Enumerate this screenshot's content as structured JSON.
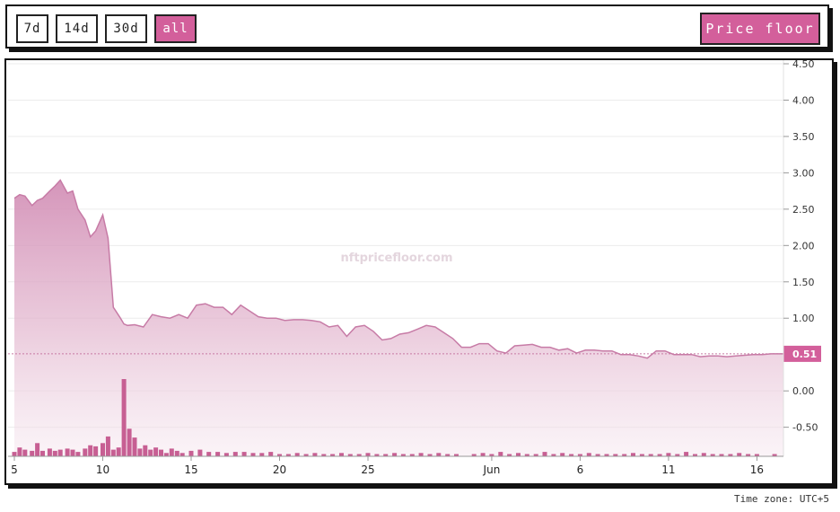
{
  "toolbar": {
    "ranges": [
      {
        "label": "7d",
        "active": false
      },
      {
        "label": "14d",
        "active": false
      },
      {
        "label": "30d",
        "active": false
      },
      {
        "label": "all",
        "active": true
      }
    ],
    "metric_label": "Price floor"
  },
  "timezone": "Time zone: UTC+5",
  "watermark": "nftpricefloor.com",
  "colors": {
    "accent": "#d35f9b",
    "line": "#c77ba6",
    "volume": "#c75f93"
  },
  "chart_data": {
    "type": "area",
    "title": "",
    "xlabel": "",
    "ylabel": "",
    "ylim": [
      -0.9,
      4.5
    ],
    "y_ticks": [
      "4.50",
      "4.00",
      "3.50",
      "3.00",
      "2.50",
      "2.00",
      "1.50",
      "1.00",
      "0.51",
      "0.00",
      "-0.50"
    ],
    "y_tick_values": [
      4.5,
      4.0,
      3.5,
      3.0,
      2.5,
      2.0,
      1.5,
      1.0,
      0.51,
      0.0,
      -0.5
    ],
    "current_value": 0.51,
    "current_label": "0.51",
    "x_ticks": [
      {
        "label": "5",
        "day": 0
      },
      {
        "label": "10",
        "day": 5
      },
      {
        "label": "15",
        "day": 10
      },
      {
        "label": "20",
        "day": 15
      },
      {
        "label": "25",
        "day": 20
      },
      {
        "label": "Jun",
        "day": 27
      },
      {
        "label": "6",
        "day": 32
      },
      {
        "label": "11",
        "day": 37
      },
      {
        "label": "16",
        "day": 42
      }
    ],
    "xlim": [
      0,
      43.5
    ],
    "series": [
      {
        "x": [
          0,
          0.3,
          0.6,
          1,
          1.3,
          1.6,
          2,
          2.3,
          2.6,
          3,
          3.3,
          3.6,
          4,
          4.3,
          4.6,
          5,
          5.3,
          5.6,
          6,
          6.2,
          6.4,
          6.8,
          7.3,
          7.8,
          8.3,
          8.8,
          9.3,
          9.8,
          10.3,
          10.8,
          11.3,
          11.8,
          12.3,
          12.8,
          13.3,
          13.8,
          14.3,
          14.8,
          15.3,
          15.8,
          16.3,
          16.8,
          17.3,
          17.8,
          18.3,
          18.8,
          19.3,
          19.8,
          20.3,
          20.8,
          21.3,
          21.8,
          22.3,
          22.8,
          23.3,
          23.8,
          24.3,
          24.8,
          25.3,
          25.8,
          26.3,
          26.8,
          27.3,
          27.8,
          28.3,
          28.8,
          29.3,
          29.8,
          30.3,
          30.8,
          31.3,
          31.8,
          32.3,
          32.8,
          33.3,
          33.8,
          34.3,
          34.8,
          35.3,
          35.8,
          36.3,
          36.8,
          37.3,
          37.8,
          38.3,
          38.8,
          39.3,
          39.8,
          40.3,
          40.8,
          41.3,
          41.8,
          42.3,
          42.8,
          43.5
        ],
        "values": [
          2.65,
          2.7,
          2.68,
          2.55,
          2.62,
          2.65,
          2.75,
          2.82,
          2.9,
          2.72,
          2.75,
          2.5,
          2.35,
          2.12,
          2.2,
          2.42,
          2.1,
          1.15,
          1.0,
          0.92,
          0.9,
          0.91,
          0.88,
          1.05,
          1.02,
          1.0,
          1.05,
          1.0,
          1.18,
          1.2,
          1.15,
          1.15,
          1.05,
          1.18,
          1.1,
          1.02,
          1.0,
          1.0,
          0.97,
          0.98,
          0.98,
          0.97,
          0.95,
          0.88,
          0.9,
          0.75,
          0.88,
          0.9,
          0.82,
          0.7,
          0.72,
          0.78,
          0.8,
          0.85,
          0.9,
          0.88,
          0.8,
          0.72,
          0.6,
          0.6,
          0.65,
          0.65,
          0.55,
          0.52,
          0.62,
          0.63,
          0.64,
          0.6,
          0.6,
          0.56,
          0.58,
          0.52,
          0.56,
          0.56,
          0.55,
          0.55,
          0.5,
          0.5,
          0.48,
          0.45,
          0.55,
          0.55,
          0.5,
          0.5,
          0.5,
          0.47,
          0.48,
          0.48,
          0.47,
          0.48,
          0.49,
          0.5,
          0.5,
          0.51,
          0.51
        ]
      }
    ],
    "volume": {
      "x": [
        0,
        0.3,
        0.6,
        1,
        1.3,
        1.6,
        2,
        2.3,
        2.6,
        3,
        3.3,
        3.6,
        4,
        4.3,
        4.6,
        5,
        5.3,
        5.6,
        5.9,
        6.2,
        6.5,
        6.8,
        7.1,
        7.4,
        7.7,
        8,
        8.3,
        8.6,
        8.9,
        9.2,
        9.5,
        10,
        10.5,
        11,
        11.5,
        12,
        12.5,
        13,
        13.5,
        14,
        14.5,
        15,
        15.5,
        16,
        16.5,
        17,
        17.5,
        18,
        18.5,
        19,
        19.5,
        20,
        20.5,
        21,
        21.5,
        22,
        22.5,
        23,
        23.5,
        24,
        24.5,
        25,
        26,
        26.5,
        27,
        27.5,
        28,
        28.5,
        29,
        29.5,
        30,
        30.5,
        31,
        31.5,
        32,
        32.5,
        33,
        33.5,
        34,
        34.5,
        35,
        35.5,
        36,
        36.5,
        37,
        37.5,
        38,
        38.5,
        39,
        39.5,
        40,
        40.5,
        41,
        41.5,
        42,
        43
      ],
      "values": [
        0.04,
        0.08,
        0.06,
        0.05,
        0.12,
        0.05,
        0.07,
        0.05,
        0.06,
        0.07,
        0.06,
        0.04,
        0.07,
        0.1,
        0.09,
        0.12,
        0.18,
        0.06,
        0.08,
        0.7,
        0.25,
        0.17,
        0.07,
        0.1,
        0.06,
        0.08,
        0.06,
        0.03,
        0.07,
        0.05,
        0.03,
        0.05,
        0.06,
        0.04,
        0.04,
        0.03,
        0.04,
        0.04,
        0.03,
        0.03,
        0.04,
        0.02,
        0.02,
        0.03,
        0.02,
        0.03,
        0.02,
        0.02,
        0.03,
        0.02,
        0.02,
        0.03,
        0.02,
        0.02,
        0.03,
        0.02,
        0.02,
        0.03,
        0.02,
        0.03,
        0.02,
        0.02,
        0.02,
        0.03,
        0.02,
        0.04,
        0.02,
        0.03,
        0.02,
        0.02,
        0.04,
        0.02,
        0.03,
        0.02,
        0.02,
        0.03,
        0.02,
        0.02,
        0.02,
        0.02,
        0.03,
        0.02,
        0.02,
        0.02,
        0.03,
        0.02,
        0.04,
        0.02,
        0.03,
        0.02,
        0.02,
        0.02,
        0.03,
        0.02,
        0.02,
        0.02
      ]
    },
    "grid": true
  }
}
